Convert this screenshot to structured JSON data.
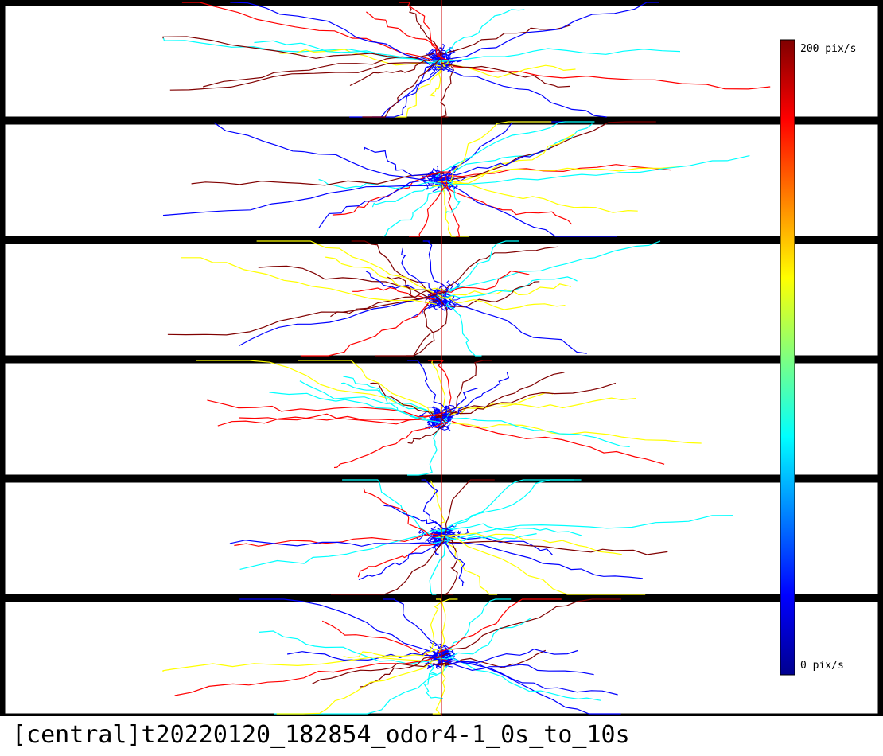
{
  "caption": "[central]t20220120_182854_odor4-1_0s_to_10s",
  "colorbar": {
    "max_label": "200 pix/s",
    "min_label": "0 pix/s",
    "colormap": "jet",
    "range": [
      0,
      200
    ],
    "unit": "pix/s"
  },
  "lanes": {
    "count": 6,
    "border_color": "#000000",
    "midline_color": "#cc0000"
  },
  "track_color_scale": [
    "#00008f",
    "#0000ff",
    "#00ffff",
    "#ffff00",
    "#ff0000",
    "#800000"
  ]
}
